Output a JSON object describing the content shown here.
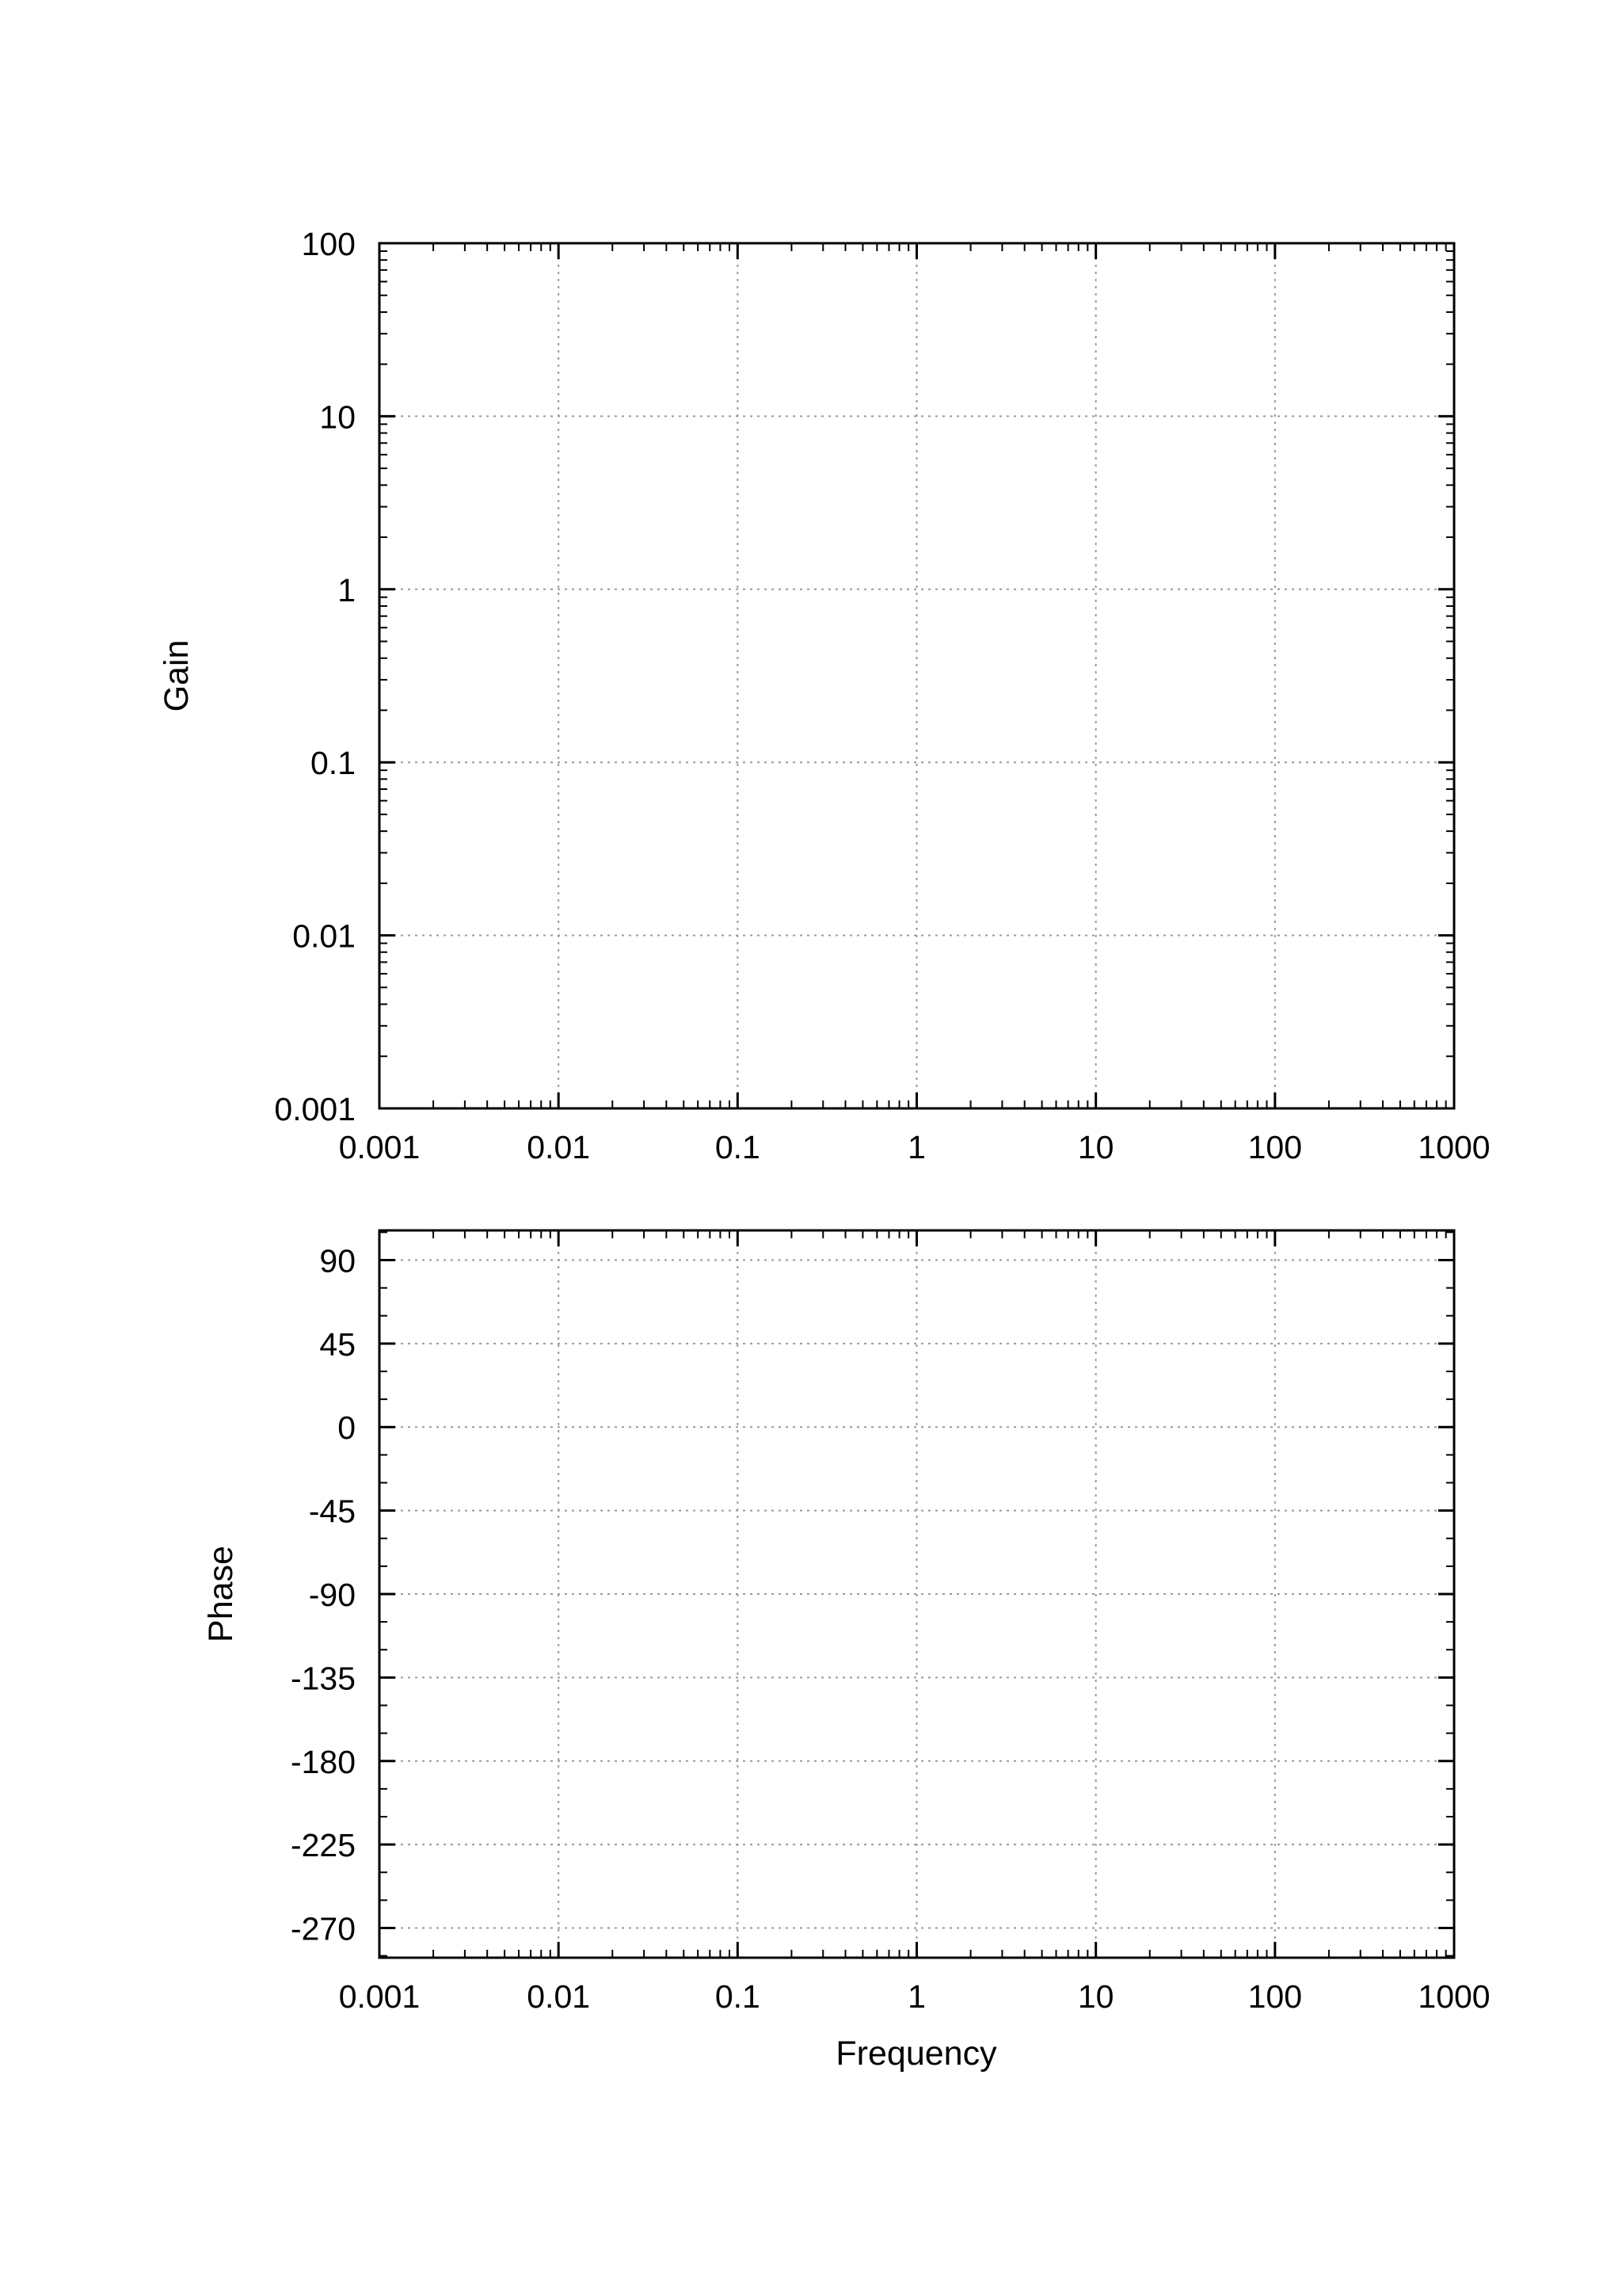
{
  "chart_data": [
    {
      "type": "line",
      "title": "",
      "xlabel": "",
      "ylabel": "Gain",
      "xscale": "log",
      "yscale": "log",
      "xlim": [
        0.001,
        1000
      ],
      "ylim": [
        0.001,
        100
      ],
      "xticks": [
        0.001,
        0.01,
        0.1,
        1,
        10,
        100,
        1000
      ],
      "xtick_labels": [
        "0.001",
        "0.01",
        "0.1",
        "1",
        "10",
        "100",
        "1000"
      ],
      "yticks": [
        0.001,
        0.01,
        0.1,
        1,
        10,
        100
      ],
      "ytick_labels": [
        "0.001",
        "0.01",
        "0.1",
        "1",
        "10",
        "100"
      ],
      "grid": true,
      "series": []
    },
    {
      "type": "line",
      "title": "",
      "xlabel": "Frequency",
      "ylabel": "Phase",
      "xscale": "log",
      "yscale": "linear",
      "xlim": [
        0.001,
        1000
      ],
      "ylim": [
        -286,
        106
      ],
      "xticks": [
        0.001,
        0.01,
        0.1,
        1,
        10,
        100,
        1000
      ],
      "xtick_labels": [
        "0.001",
        "0.01",
        "0.1",
        "1",
        "10",
        "100",
        "1000"
      ],
      "yticks": [
        90,
        45,
        0,
        -45,
        -90,
        -135,
        -180,
        -225,
        -270
      ],
      "ytick_labels": [
        "90",
        "45",
        "0",
        "-45",
        "-90",
        "-135",
        "-180",
        "-225",
        "-270"
      ],
      "grid": true,
      "series": []
    }
  ]
}
